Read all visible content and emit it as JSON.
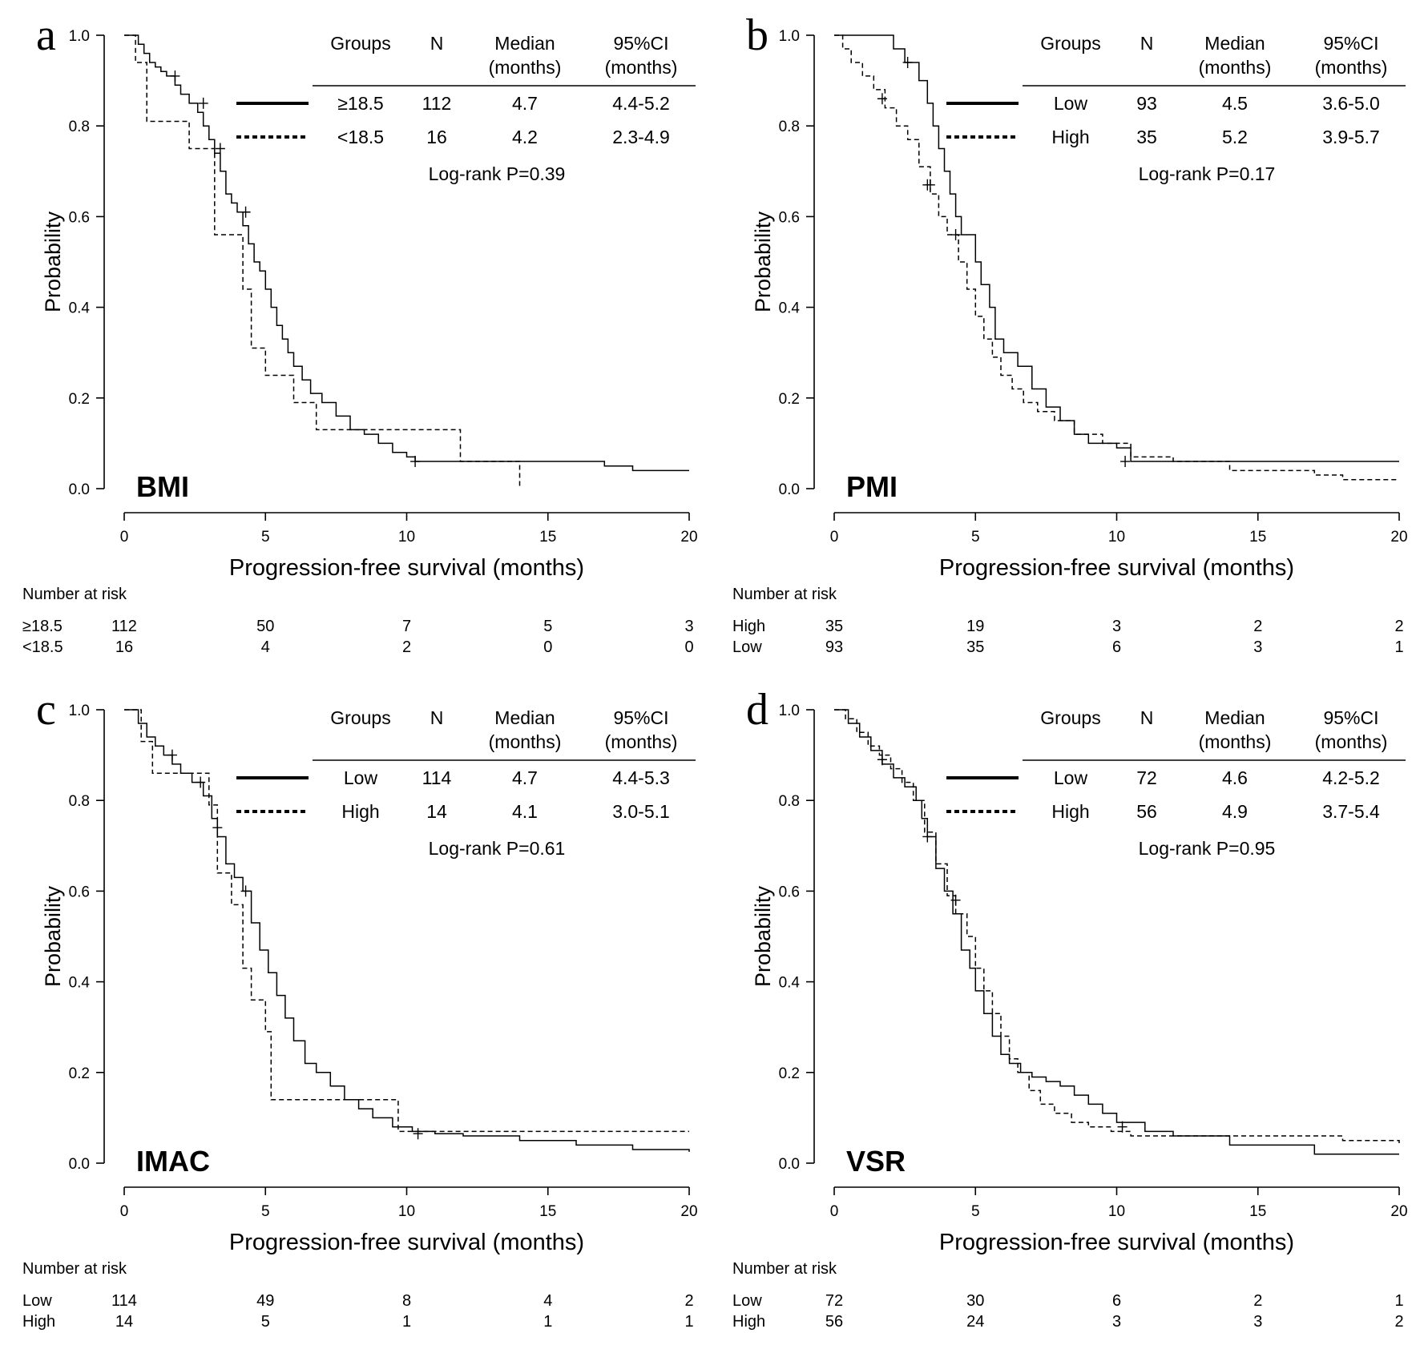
{
  "figure": {
    "x_label": "Progression-free survival (months)",
    "y_label": "Probability",
    "risk_header": "Number at risk",
    "table_headers": {
      "groups": "Groups",
      "n": "N",
      "median": [
        "Median",
        "(months)"
      ],
      "ci": [
        "95%CI",
        "(months)"
      ]
    },
    "x_ticks": [
      "0",
      "5",
      "10",
      "15",
      "20"
    ],
    "y_ticks": [
      "0.0",
      "0.2",
      "0.4",
      "0.6",
      "0.8",
      "1.0"
    ]
  },
  "chart_data": [
    {
      "type": "line",
      "subtype": "kaplan-meier",
      "letter": "a",
      "covariate": "BMI",
      "xlim": [
        0,
        20
      ],
      "ylim": [
        0,
        1
      ],
      "x_ticks": [
        0,
        5,
        10,
        15,
        20
      ],
      "y_ticks": [
        0,
        0.2,
        0.4,
        0.6,
        0.8,
        1.0
      ],
      "pvalue": "Log-rank P=0.39",
      "groups": [
        {
          "label": "≥18.5",
          "n": "112",
          "median": "4.7",
          "ci": "4.4-5.2",
          "style": "solid"
        },
        {
          "label": "<18.5",
          "n": "16",
          "median": "4.2",
          "ci": "2.3-4.9",
          "style": "dashed"
        }
      ],
      "series": [
        {
          "name": "≥18.5",
          "style": "solid",
          "x": [
            0,
            0.5,
            0.7,
            0.9,
            1.1,
            1.3,
            1.5,
            1.8,
            2.0,
            2.3,
            2.6,
            2.8,
            3.0,
            3.2,
            3.4,
            3.6,
            3.8,
            4.0,
            4.2,
            4.4,
            4.6,
            4.8,
            5.0,
            5.2,
            5.4,
            5.6,
            5.8,
            6.0,
            6.3,
            6.6,
            7.0,
            7.5,
            8.0,
            8.5,
            9.0,
            9.5,
            10.0,
            10.3,
            11.0,
            13.0,
            14.0,
            16.0,
            17.0,
            18.0,
            20.0
          ],
          "y": [
            1.0,
            0.98,
            0.96,
            0.94,
            0.93,
            0.92,
            0.91,
            0.89,
            0.87,
            0.85,
            0.83,
            0.8,
            0.77,
            0.74,
            0.7,
            0.65,
            0.63,
            0.61,
            0.58,
            0.54,
            0.5,
            0.48,
            0.44,
            0.4,
            0.36,
            0.33,
            0.3,
            0.27,
            0.24,
            0.21,
            0.19,
            0.16,
            0.13,
            0.12,
            0.1,
            0.08,
            0.07,
            0.06,
            0.06,
            0.06,
            0.06,
            0.06,
            0.05,
            0.04,
            0.04
          ],
          "censors": [
            [
              1.8,
              0.91
            ],
            [
              2.8,
              0.85
            ],
            [
              3.4,
              0.75
            ],
            [
              4.3,
              0.61
            ],
            [
              10.3,
              0.06
            ]
          ]
        },
        {
          "name": "<18.5",
          "style": "dashed",
          "x": [
            0,
            0.4,
            0.8,
            2.3,
            3.2,
            3.5,
            4.2,
            4.5,
            5.0,
            6.0,
            6.8,
            11.9,
            14.0
          ],
          "y": [
            1.0,
            0.94,
            0.81,
            0.75,
            0.56,
            0.56,
            0.44,
            0.31,
            0.25,
            0.19,
            0.13,
            0.06,
            0.0
          ],
          "censors": []
        }
      ],
      "risk_table": [
        {
          "label": "≥18.5",
          "values": [
            112,
            50,
            7,
            5,
            3
          ]
        },
        {
          "label": "<18.5",
          "values": [
            16,
            4,
            2,
            0,
            0
          ]
        }
      ]
    },
    {
      "type": "line",
      "subtype": "kaplan-meier",
      "letter": "b",
      "covariate": "PMI",
      "xlim": [
        0,
        20
      ],
      "ylim": [
        0,
        1
      ],
      "x_ticks": [
        0,
        5,
        10,
        15,
        20
      ],
      "y_ticks": [
        0,
        0.2,
        0.4,
        0.6,
        0.8,
        1.0
      ],
      "pvalue": "Log-rank P=0.17",
      "groups": [
        {
          "label": "Low",
          "n": "93",
          "median": "4.5",
          "ci": "3.6-5.0",
          "style": "solid"
        },
        {
          "label": "High",
          "n": "35",
          "median": "5.2",
          "ci": "3.9-5.7",
          "style": "dashed"
        }
      ],
      "series": [
        {
          "name": "Low",
          "style": "solid",
          "x": [
            0,
            2.1,
            2.5,
            3.0,
            3.3,
            3.5,
            3.7,
            3.9,
            4.1,
            4.3,
            4.5,
            5.0,
            5.2,
            5.5,
            5.7,
            6.0,
            6.5,
            7.0,
            7.5,
            8.0,
            8.5,
            9.0,
            10.0,
            10.5,
            15.0,
            20.0
          ],
          "y": [
            1.0,
            0.97,
            0.94,
            0.9,
            0.85,
            0.8,
            0.75,
            0.7,
            0.65,
            0.6,
            0.56,
            0.5,
            0.45,
            0.4,
            0.33,
            0.3,
            0.27,
            0.22,
            0.18,
            0.15,
            0.12,
            0.1,
            0.09,
            0.06,
            0.06,
            0.06
          ],
          "censors": [
            [
              2.6,
              0.94
            ],
            [
              3.4,
              0.67
            ],
            [
              10.3,
              0.06
            ]
          ]
        },
        {
          "name": "High",
          "style": "dashed",
          "x": [
            0,
            0.3,
            0.6,
            1.0,
            1.4,
            1.8,
            2.2,
            2.6,
            3.0,
            3.4,
            3.7,
            4.0,
            4.4,
            4.7,
            5.0,
            5.3,
            5.6,
            5.9,
            6.3,
            6.7,
            7.2,
            7.8,
            8.5,
            9.5,
            10.5,
            12.0,
            14.0,
            17.0,
            18.0,
            20.0
          ],
          "y": [
            1.0,
            0.97,
            0.94,
            0.91,
            0.88,
            0.84,
            0.8,
            0.77,
            0.71,
            0.65,
            0.6,
            0.56,
            0.5,
            0.44,
            0.38,
            0.33,
            0.29,
            0.25,
            0.22,
            0.19,
            0.17,
            0.15,
            0.12,
            0.1,
            0.07,
            0.06,
            0.04,
            0.03,
            0.02,
            0.02
          ],
          "censors": [
            [
              1.7,
              0.86
            ],
            [
              3.3,
              0.67
            ],
            [
              4.3,
              0.56
            ]
          ]
        }
      ],
      "risk_table": [
        {
          "label": "High",
          "values": [
            35,
            19,
            3,
            2,
            2
          ]
        },
        {
          "label": "Low",
          "values": [
            93,
            35,
            6,
            3,
            1
          ]
        }
      ]
    },
    {
      "type": "line",
      "subtype": "kaplan-meier",
      "letter": "c",
      "covariate": "IMAC",
      "xlim": [
        0,
        20
      ],
      "ylim": [
        0,
        1
      ],
      "x_ticks": [
        0,
        5,
        10,
        15,
        20
      ],
      "y_ticks": [
        0,
        0.2,
        0.4,
        0.6,
        0.8,
        1.0
      ],
      "pvalue": "Log-rank P=0.61",
      "groups": [
        {
          "label": "Low",
          "n": "114",
          "median": "4.7",
          "ci": "4.4-5.3",
          "style": "solid"
        },
        {
          "label": "High",
          "n": "14",
          "median": "4.1",
          "ci": "3.0-5.1",
          "style": "dashed"
        }
      ],
      "series": [
        {
          "name": "Low",
          "style": "solid",
          "x": [
            0,
            0.5,
            0.8,
            1.1,
            1.4,
            1.7,
            2.0,
            2.4,
            2.8,
            3.1,
            3.3,
            3.6,
            3.9,
            4.2,
            4.5,
            4.8,
            5.1,
            5.4,
            5.7,
            6.0,
            6.4,
            6.8,
            7.3,
            7.8,
            8.3,
            8.8,
            9.5,
            10.2,
            11.0,
            12.0,
            14.0,
            16.0,
            18.0,
            20.0
          ],
          "y": [
            1.0,
            0.97,
            0.94,
            0.92,
            0.9,
            0.88,
            0.86,
            0.84,
            0.81,
            0.76,
            0.72,
            0.66,
            0.63,
            0.6,
            0.53,
            0.47,
            0.42,
            0.37,
            0.32,
            0.27,
            0.22,
            0.2,
            0.17,
            0.14,
            0.12,
            0.1,
            0.08,
            0.07,
            0.065,
            0.06,
            0.05,
            0.04,
            0.03,
            0.025
          ],
          "censors": [
            [
              1.7,
              0.9
            ],
            [
              2.7,
              0.84
            ],
            [
              3.3,
              0.74
            ],
            [
              4.3,
              0.6
            ],
            [
              10.4,
              0.065
            ]
          ]
        },
        {
          "name": "High",
          "style": "dashed",
          "x": [
            0,
            0.6,
            1.0,
            2.2,
            3.0,
            3.3,
            3.8,
            4.2,
            4.5,
            5.0,
            5.2,
            7.8,
            9.7,
            20.0
          ],
          "y": [
            1.0,
            0.93,
            0.86,
            0.86,
            0.79,
            0.64,
            0.57,
            0.43,
            0.36,
            0.29,
            0.14,
            0.14,
            0.07,
            0.07
          ],
          "censors": []
        }
      ],
      "risk_table": [
        {
          "label": "Low",
          "values": [
            114,
            49,
            8,
            4,
            2
          ]
        },
        {
          "label": "High",
          "values": [
            14,
            5,
            1,
            1,
            1
          ]
        }
      ]
    },
    {
      "type": "line",
      "subtype": "kaplan-meier",
      "letter": "d",
      "covariate": "VSR",
      "xlim": [
        0,
        20
      ],
      "ylim": [
        0,
        1
      ],
      "x_ticks": [
        0,
        5,
        10,
        15,
        20
      ],
      "y_ticks": [
        0,
        0.2,
        0.4,
        0.6,
        0.8,
        1.0
      ],
      "pvalue": "Log-rank P=0.95",
      "groups": [
        {
          "label": "Low",
          "n": "72",
          "median": "4.6",
          "ci": "4.2-5.2",
          "style": "solid"
        },
        {
          "label": "High",
          "n": "56",
          "median": "4.9",
          "ci": "3.7-5.4",
          "style": "dashed"
        }
      ],
      "series": [
        {
          "name": "Low",
          "style": "solid",
          "x": [
            0,
            0.5,
            0.9,
            1.3,
            1.7,
            2.1,
            2.5,
            2.9,
            3.1,
            3.3,
            3.6,
            3.9,
            4.2,
            4.5,
            4.8,
            5.0,
            5.3,
            5.6,
            5.9,
            6.2,
            6.6,
            7.0,
            7.5,
            8.0,
            8.5,
            9.0,
            9.5,
            10.0,
            11.0,
            12.0,
            14.0,
            17.0,
            20.0
          ],
          "y": [
            1.0,
            0.97,
            0.94,
            0.91,
            0.88,
            0.85,
            0.83,
            0.8,
            0.76,
            0.72,
            0.65,
            0.6,
            0.55,
            0.47,
            0.43,
            0.38,
            0.33,
            0.28,
            0.24,
            0.22,
            0.2,
            0.19,
            0.18,
            0.17,
            0.15,
            0.13,
            0.11,
            0.09,
            0.07,
            0.06,
            0.04,
            0.02,
            0.02
          ],
          "censors": [
            [
              1.7,
              0.89
            ],
            [
              3.3,
              0.72
            ],
            [
              4.3,
              0.58
            ],
            [
              10.2,
              0.08
            ]
          ]
        },
        {
          "name": "High",
          "style": "dashed",
          "x": [
            0,
            0.4,
            0.8,
            1.2,
            1.6,
            2.0,
            2.4,
            2.8,
            3.2,
            3.6,
            4.0,
            4.3,
            4.7,
            5.0,
            5.3,
            5.6,
            5.9,
            6.2,
            6.5,
            6.9,
            7.3,
            7.8,
            8.4,
            9.0,
            9.8,
            10.5,
            12.0,
            15.0,
            18.0,
            20.0
          ],
          "y": [
            1.0,
            0.98,
            0.95,
            0.92,
            0.9,
            0.87,
            0.84,
            0.8,
            0.73,
            0.66,
            0.59,
            0.55,
            0.5,
            0.43,
            0.38,
            0.33,
            0.28,
            0.23,
            0.2,
            0.16,
            0.13,
            0.11,
            0.09,
            0.08,
            0.07,
            0.06,
            0.06,
            0.06,
            0.05,
            0.04
          ],
          "censors": []
        }
      ],
      "risk_table": [
        {
          "label": "Low",
          "values": [
            72,
            30,
            6,
            2,
            1
          ]
        },
        {
          "label": "High",
          "values": [
            56,
            24,
            3,
            3,
            2
          ]
        }
      ]
    }
  ]
}
